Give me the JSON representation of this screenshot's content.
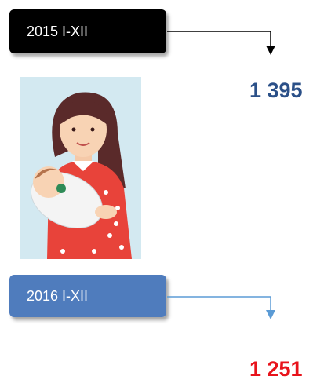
{
  "panels": [
    {
      "label": "2015 I-XII",
      "value": "1 395"
    },
    {
      "label": "2016 I-XII",
      "value": "1 251"
    }
  ]
}
